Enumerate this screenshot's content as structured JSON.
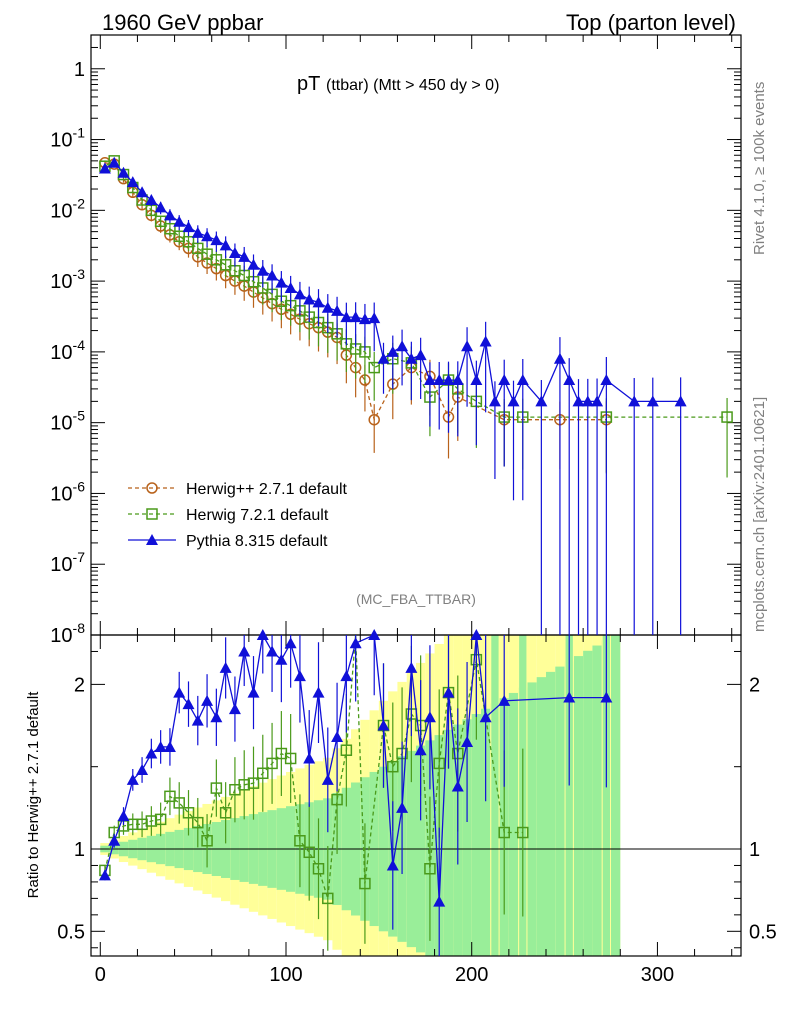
{
  "header": {
    "energy": "1960 GeV ppbar",
    "process": "Top (parton level)"
  },
  "side": {
    "version": "Rivet 4.1.0, ≥ 100k events",
    "source": "mcplots.cern.ch [arXiv:2401.10621]"
  },
  "chart_data": {
    "type": "line",
    "title_main": "pT",
    "title_sub": "(ttbar) (Mtt > 450 dy > 0)",
    "analysis": "(MC_FBA_TTBAR)",
    "xlim": [
      -5,
      345
    ],
    "ylim_top": [
      1e-08,
      3
    ],
    "ylim_ratio": [
      0.35,
      2.3
    ],
    "ylabel_ratio": "Ratio to Herwig++ 2.7.1 default",
    "x_ticks": [
      "0",
      "100",
      "200",
      "300"
    ],
    "y_ticks_top": [
      "10^-8",
      "10^-7",
      "10^-6",
      "10^-5",
      "10^-4",
      "10^-3",
      "10^-2",
      "10^-1",
      "1"
    ],
    "y_ticks_ratio": [
      "0.5",
      "1",
      "2"
    ],
    "legend": [
      "Herwig++ 2.7.1 default",
      "Herwig 7.2.1 default",
      "Pythia 8.315 default"
    ],
    "series": [
      {
        "name": "Herwig++ 2.7.1 default",
        "color": "#b8621b",
        "marker": "circle",
        "x": [
          2.5,
          7.5,
          12.5,
          17.5,
          22.5,
          27.5,
          32.5,
          37.5,
          42.5,
          47.5,
          52.5,
          57.5,
          62.5,
          67.5,
          72.5,
          77.5,
          82.5,
          87.5,
          92.5,
          97.5,
          102.5,
          107.5,
          112.5,
          117.5,
          122.5,
          127.5,
          132.5,
          137.5,
          142.5,
          147.5,
          157.5,
          167.5,
          177.5,
          187.5,
          192.5,
          217.5,
          247.5,
          272.5
        ],
        "y": [
          0.047,
          0.045,
          0.028,
          0.018,
          0.012,
          0.0085,
          0.006,
          0.0045,
          0.0036,
          0.0029,
          0.0022,
          0.0018,
          0.0015,
          0.0012,
          0.001,
          0.00085,
          0.0007,
          0.00058,
          0.00048,
          0.0004,
          0.00034,
          0.00029,
          0.00025,
          0.00022,
          0.00019,
          0.00016,
          9e-05,
          6e-05,
          4e-05,
          1.1e-05,
          3.5e-05,
          6e-05,
          4.5e-05,
          1.2e-05,
          2.3e-05,
          1.1e-05,
          1.1e-05,
          1.1e-05
        ]
      },
      {
        "name": "Herwig 7.2.1 default",
        "color": "#4a9a1a",
        "marker": "square",
        "x": [
          2.5,
          7.5,
          12.5,
          17.5,
          22.5,
          27.5,
          32.5,
          37.5,
          42.5,
          47.5,
          52.5,
          57.5,
          62.5,
          67.5,
          72.5,
          77.5,
          82.5,
          87.5,
          92.5,
          97.5,
          102.5,
          107.5,
          112.5,
          117.5,
          122.5,
          127.5,
          132.5,
          137.5,
          142.5,
          147.5,
          157.5,
          167.5,
          177.5,
          187.5,
          192.5,
          202.5,
          217.5,
          227.5,
          272.5,
          337.5
        ],
        "y": [
          0.042,
          0.05,
          0.032,
          0.021,
          0.014,
          0.01,
          0.007,
          0.0055,
          0.0043,
          0.0036,
          0.0029,
          0.0024,
          0.002,
          0.0017,
          0.0014,
          0.0012,
          0.00098,
          0.0008,
          0.00065,
          0.00052,
          0.00045,
          0.00038,
          0.00031,
          0.00026,
          0.00022,
          0.00018,
          0.00013,
          0.00011,
          0.0001,
          6e-05,
          8e-05,
          7e-05,
          2.3e-05,
          4e-05,
          3e-05,
          2e-05,
          1.2e-05,
          1.2e-05,
          1.2e-05,
          1.2e-05
        ]
      },
      {
        "name": "Pythia 8.315 default",
        "color": "#1010d8",
        "marker": "triangle",
        "x": [
          2.5,
          7.5,
          12.5,
          17.5,
          22.5,
          27.5,
          32.5,
          37.5,
          42.5,
          47.5,
          52.5,
          57.5,
          62.5,
          67.5,
          72.5,
          77.5,
          82.5,
          87.5,
          92.5,
          97.5,
          102.5,
          107.5,
          112.5,
          117.5,
          122.5,
          127.5,
          132.5,
          137.5,
          142.5,
          147.5,
          152.5,
          157.5,
          162.5,
          167.5,
          172.5,
          177.5,
          182.5,
          187.5,
          192.5,
          197.5,
          202.5,
          207.5,
          212.5,
          217.5,
          222.5,
          227.5,
          237.5,
          247.5,
          252.5,
          257.5,
          262.5,
          267.5,
          272.5,
          287.5,
          297.5,
          312.5
        ],
        "y": [
          0.039,
          0.047,
          0.034,
          0.025,
          0.018,
          0.014,
          0.011,
          0.0085,
          0.0069,
          0.0058,
          0.0048,
          0.0043,
          0.0038,
          0.0032,
          0.0025,
          0.0022,
          0.0017,
          0.0014,
          0.0012,
          0.00095,
          0.0008,
          0.00065,
          0.00055,
          0.0005,
          0.00042,
          0.00038,
          0.00031,
          0.00031,
          0.00029,
          0.0003,
          8e-05,
          0.0001,
          0.00012,
          8e-05,
          9e-05,
          4e-05,
          4e-05,
          4e-05,
          4e-05,
          0.00012,
          4e-05,
          0.00014,
          2e-05,
          4e-05,
          2e-05,
          4e-05,
          2e-05,
          8e-05,
          4e-05,
          2e-05,
          2e-05,
          2e-05,
          4e-05,
          2e-05,
          2e-05,
          2e-05
        ]
      }
    ],
    "ratio_series": [
      {
        "name": "Herwig 7.2.1 default",
        "x": [
          2.5,
          7.5,
          12.5,
          17.5,
          22.5,
          27.5,
          32.5,
          37.5,
          42.5,
          47.5,
          52.5,
          57.5,
          62.5,
          67.5,
          72.5,
          77.5,
          82.5,
          87.5,
          92.5,
          97.5,
          102.5,
          107.5,
          112.5,
          117.5,
          122.5,
          127.5,
          132.5,
          137.5,
          142.5,
          152.5,
          157.5,
          162.5,
          167.5,
          172.5,
          177.5,
          182.5,
          187.5,
          192.5,
          202.5,
          217.5,
          227.5
        ],
        "y": [
          0.87,
          1.1,
          1.14,
          1.15,
          1.15,
          1.17,
          1.18,
          1.32,
          1.28,
          1.22,
          1.16,
          1.05,
          1.37,
          1.22,
          1.36,
          1.39,
          1.4,
          1.46,
          1.52,
          1.58,
          1.55,
          1.05,
          0.98,
          0.88,
          0.7,
          1.3,
          1.6,
          2.33,
          0.79,
          1.75,
          1.5,
          1.58,
          1.82,
          1.75,
          0.88,
          1.52,
          1.95,
          1.58,
          2.15,
          1.1,
          1.1
        ]
      },
      {
        "name": "Pythia 8.315 default",
        "x": [
          2.5,
          7.5,
          12.5,
          17.5,
          22.5,
          27.5,
          32.5,
          37.5,
          42.5,
          47.5,
          52.5,
          57.5,
          62.5,
          67.5,
          72.5,
          77.5,
          82.5,
          87.5,
          92.5,
          97.5,
          102.5,
          107.5,
          112.5,
          117.5,
          122.5,
          127.5,
          132.5,
          137.5,
          147.5,
          152.5,
          157.5,
          162.5,
          167.5,
          172.5,
          177.5,
          182.5,
          187.5,
          192.5,
          197.5,
          202.5,
          207.5,
          217.5,
          252.5,
          272.5
        ],
        "y": [
          0.84,
          1.05,
          1.2,
          1.42,
          1.48,
          1.58,
          1.62,
          1.62,
          1.95,
          1.88,
          1.78,
          1.9,
          1.8,
          2.1,
          1.85,
          2.2,
          1.95,
          2.3,
          2.2,
          2.15,
          2.25,
          2.05,
          1.55,
          1.95,
          1.42,
          1.68,
          2.05,
          2.25,
          2.3,
          1.75,
          0.9,
          1.25,
          2.1,
          1.6,
          1.8,
          0.68,
          1.95,
          1.38,
          1.65,
          2.3,
          1.8,
          1.9,
          1.92,
          1.92
        ]
      }
    ]
  }
}
